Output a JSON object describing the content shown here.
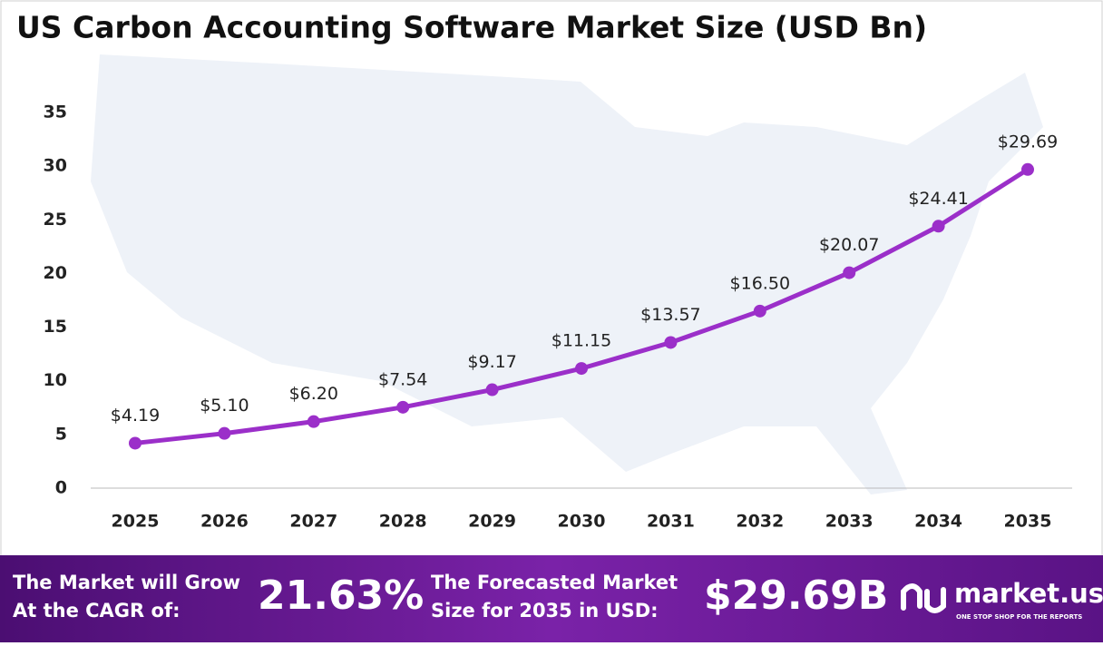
{
  "chart_data": {
    "type": "line",
    "title": "US Carbon Accounting Software Market Size (USD Bn)",
    "categories": [
      "2025",
      "2026",
      "2027",
      "2028",
      "2029",
      "2030",
      "2031",
      "2032",
      "2033",
      "2034",
      "2035"
    ],
    "values": [
      4.19,
      5.1,
      6.2,
      7.54,
      9.17,
      11.15,
      13.57,
      16.5,
      20.07,
      24.41,
      29.69
    ],
    "value_labels": [
      "$4.19",
      "$5.10",
      "$6.20",
      "$7.54",
      "$9.17",
      "$11.15",
      "$13.57",
      "$16.50",
      "$20.07",
      "$24.41",
      "$29.69"
    ],
    "color": "#9b2fc9",
    "ylim": [
      0,
      35
    ],
    "yticks": [
      0,
      5,
      10,
      15,
      20,
      25,
      30,
      35
    ],
    "grid": false
  },
  "footer": {
    "cagr_label": [
      "The Market will Grow",
      "At the CAGR of:"
    ],
    "cagr_value": "21.63%",
    "forecast_label": [
      "The Forecasted Market",
      "Size for 2035 in USD:"
    ],
    "forecast_value": "$29.69B",
    "brand": "market.us",
    "tagline": "ONE STOP SHOP FOR THE REPORTS"
  }
}
